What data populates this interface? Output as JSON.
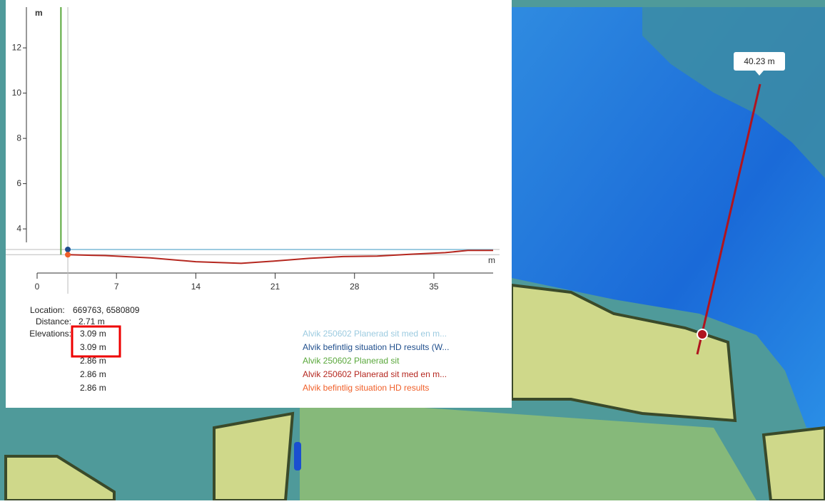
{
  "chart_data": {
    "type": "line",
    "y_label": "m",
    "x_label": "m",
    "xlim": [
      0,
      40.23
    ],
    "ylim": [
      2.05,
      13.8
    ],
    "xticks": [
      0,
      7,
      14,
      21,
      28,
      35
    ],
    "yticks": [
      4,
      6,
      8,
      10,
      12
    ],
    "series": [
      {
        "name": "Alvik 250602 Planerad sit med en m...",
        "color": "#9ccbe0",
        "x": [
          2.71,
          40.23
        ],
        "values": [
          3.09,
          3.09
        ]
      },
      {
        "name": "Alvik befintlig situation HD results (W...",
        "color": "#1f4e8c",
        "x": [
          2.71
        ],
        "values": [
          3.09
        ]
      },
      {
        "name": "Alvik 250602 Planerad sit",
        "color": "#5aa83c",
        "x": [
          2.1,
          2.1
        ],
        "values": [
          13.8,
          2.86
        ]
      },
      {
        "name": "Alvik 250602 Planerad sit med en m...",
        "color": "#b5271f",
        "x": [
          2.71,
          6,
          10,
          14,
          18,
          21,
          24,
          27,
          30,
          33,
          36,
          38,
          40.23
        ],
        "values": [
          2.86,
          2.82,
          2.72,
          2.55,
          2.48,
          2.58,
          2.7,
          2.78,
          2.8,
          2.88,
          2.95,
          3.05,
          3.05
        ]
      },
      {
        "name": "Alvik befintlig situation HD results",
        "color": "#f0602a",
        "x": [
          2.71
        ],
        "values": [
          2.86
        ]
      }
    ]
  },
  "readout": {
    "location_label": "Location:",
    "location": "669763, 6580809",
    "distance_label": "Distance:",
    "distance": "2.71 m",
    "elevations_label": "Elevations:",
    "elevations": [
      "3.09 m",
      "3.09 m",
      "2.86 m",
      "2.86 m",
      "2.86 m"
    ]
  },
  "map": {
    "measure_label": "40.23 m"
  }
}
